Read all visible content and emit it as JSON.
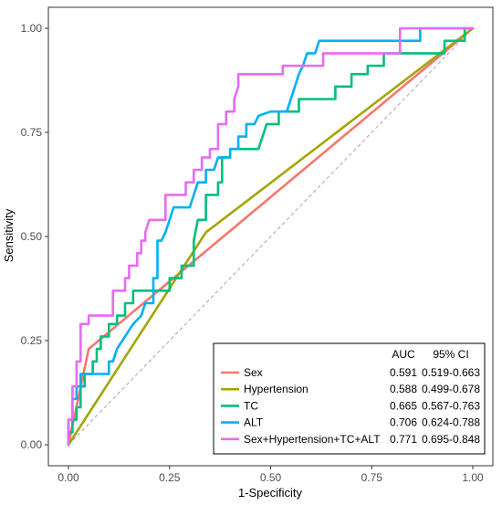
{
  "chart_data": {
    "type": "line",
    "xlabel": "1-Specificity",
    "ylabel": "Sensitivity",
    "xlim": [
      0,
      1
    ],
    "ylim": [
      0,
      1
    ],
    "x_ticks": [
      "0.00",
      "0.25",
      "0.50",
      "0.75",
      "1.00"
    ],
    "y_ticks": [
      "0.00",
      "0.25",
      "0.50",
      "0.75",
      "1.00"
    ],
    "grid": false,
    "legend": {
      "placement": "bottom-right",
      "header_auc": "AUC",
      "header_ci": "95% CI"
    },
    "reference_line": {
      "color": "#b0a0b8",
      "style": "dashed"
    },
    "series": [
      {
        "name": "Sex",
        "auc": "0.591",
        "ci": "0.519-0.663",
        "color": "#F8766D",
        "points": [
          [
            0,
            0
          ],
          [
            0.05,
            0.23
          ],
          [
            1,
            1
          ]
        ]
      },
      {
        "name": "Hypertension",
        "auc": "0.588",
        "ci": "0.499-0.678",
        "color": "#A3A500",
        "points": [
          [
            0,
            0
          ],
          [
            0.34,
            0.51
          ],
          [
            1,
            1
          ]
        ]
      },
      {
        "name": "TC",
        "auc": "0.665",
        "ci": "0.567-0.763",
        "color": "#00BF7D",
        "points": [
          [
            0,
            0
          ],
          [
            0,
            0.03
          ],
          [
            0.01,
            0.03
          ],
          [
            0.01,
            0.06
          ],
          [
            0.02,
            0.06
          ],
          [
            0.02,
            0.09
          ],
          [
            0.03,
            0.09
          ],
          [
            0.03,
            0.14
          ],
          [
            0.04,
            0.14
          ],
          [
            0.04,
            0.17
          ],
          [
            0.06,
            0.17
          ],
          [
            0.06,
            0.2
          ],
          [
            0.07,
            0.2
          ],
          [
            0.07,
            0.23
          ],
          [
            0.08,
            0.23
          ],
          [
            0.08,
            0.26
          ],
          [
            0.1,
            0.26
          ],
          [
            0.1,
            0.29
          ],
          [
            0.12,
            0.29
          ],
          [
            0.12,
            0.31
          ],
          [
            0.14,
            0.31
          ],
          [
            0.14,
            0.34
          ],
          [
            0.16,
            0.34
          ],
          [
            0.16,
            0.37
          ],
          [
            0.2,
            0.37
          ],
          [
            0.25,
            0.37
          ],
          [
            0.25,
            0.4
          ],
          [
            0.28,
            0.4
          ],
          [
            0.28,
            0.43
          ],
          [
            0.31,
            0.43
          ],
          [
            0.31,
            0.49
          ],
          [
            0.32,
            0.54
          ],
          [
            0.34,
            0.54
          ],
          [
            0.34,
            0.6
          ],
          [
            0.37,
            0.6
          ],
          [
            0.37,
            0.63
          ],
          [
            0.38,
            0.63
          ],
          [
            0.38,
            0.69
          ],
          [
            0.4,
            0.69
          ],
          [
            0.4,
            0.71
          ],
          [
            0.47,
            0.71
          ],
          [
            0.49,
            0.77
          ],
          [
            0.52,
            0.77
          ],
          [
            0.52,
            0.8
          ],
          [
            0.57,
            0.8
          ],
          [
            0.57,
            0.83
          ],
          [
            0.66,
            0.83
          ],
          [
            0.66,
            0.86
          ],
          [
            0.7,
            0.86
          ],
          [
            0.7,
            0.89
          ],
          [
            0.74,
            0.89
          ],
          [
            0.74,
            0.91
          ],
          [
            0.78,
            0.91
          ],
          [
            0.78,
            0.94
          ],
          [
            0.93,
            0.94
          ],
          [
            0.93,
            0.97
          ],
          [
            0.98,
            0.97
          ],
          [
            0.98,
            1
          ],
          [
            1,
            1
          ]
        ]
      },
      {
        "name": "ALT",
        "auc": "0.706",
        "ci": "0.624-0.788",
        "color": "#00B0F6",
        "points": [
          [
            0,
            0
          ],
          [
            0,
            0.06
          ],
          [
            0.01,
            0.06
          ],
          [
            0.01,
            0.11
          ],
          [
            0.02,
            0.11
          ],
          [
            0.02,
            0.14
          ],
          [
            0.03,
            0.14
          ],
          [
            0.03,
            0.17
          ],
          [
            0.1,
            0.17
          ],
          [
            0.1,
            0.2
          ],
          [
            0.11,
            0.2
          ],
          [
            0.12,
            0.23
          ],
          [
            0.14,
            0.26
          ],
          [
            0.16,
            0.29
          ],
          [
            0.18,
            0.31
          ],
          [
            0.19,
            0.34
          ],
          [
            0.21,
            0.34
          ],
          [
            0.21,
            0.4
          ],
          [
            0.22,
            0.4
          ],
          [
            0.22,
            0.49
          ],
          [
            0.23,
            0.49
          ],
          [
            0.24,
            0.51
          ],
          [
            0.25,
            0.54
          ],
          [
            0.26,
            0.57
          ],
          [
            0.3,
            0.57
          ],
          [
            0.31,
            0.6
          ],
          [
            0.32,
            0.63
          ],
          [
            0.34,
            0.63
          ],
          [
            0.34,
            0.66
          ],
          [
            0.36,
            0.66
          ],
          [
            0.37,
            0.69
          ],
          [
            0.4,
            0.69
          ],
          [
            0.4,
            0.71
          ],
          [
            0.42,
            0.71
          ],
          [
            0.42,
            0.74
          ],
          [
            0.44,
            0.74
          ],
          [
            0.44,
            0.77
          ],
          [
            0.46,
            0.77
          ],
          [
            0.47,
            0.79
          ],
          [
            0.5,
            0.8
          ],
          [
            0.54,
            0.8
          ],
          [
            0.56,
            0.86
          ],
          [
            0.57,
            0.89
          ],
          [
            0.58,
            0.91
          ],
          [
            0.59,
            0.94
          ],
          [
            0.61,
            0.94
          ],
          [
            0.62,
            0.97
          ],
          [
            0.73,
            0.97
          ],
          [
            0.73,
            0.97
          ],
          [
            0.87,
            0.97
          ],
          [
            0.87,
            1
          ],
          [
            1,
            1
          ]
        ]
      },
      {
        "name": "Sex+Hypertension+TC+ALT",
        "auc": "0.771",
        "ci": "0.695-0.848",
        "color": "#E76BF3",
        "points": [
          [
            0,
            0
          ],
          [
            0,
            0.06
          ],
          [
            0.01,
            0.06
          ],
          [
            0.01,
            0.14
          ],
          [
            0.02,
            0.14
          ],
          [
            0.02,
            0.2
          ],
          [
            0.03,
            0.2
          ],
          [
            0.03,
            0.26
          ],
          [
            0.03,
            0.29
          ],
          [
            0.05,
            0.29
          ],
          [
            0.05,
            0.31
          ],
          [
            0.11,
            0.31
          ],
          [
            0.11,
            0.37
          ],
          [
            0.14,
            0.37
          ],
          [
            0.14,
            0.4
          ],
          [
            0.15,
            0.4
          ],
          [
            0.15,
            0.43
          ],
          [
            0.17,
            0.43
          ],
          [
            0.17,
            0.46
          ],
          [
            0.18,
            0.46
          ],
          [
            0.18,
            0.49
          ],
          [
            0.19,
            0.49
          ],
          [
            0.19,
            0.51
          ],
          [
            0.2,
            0.54
          ],
          [
            0.24,
            0.54
          ],
          [
            0.24,
            0.6
          ],
          [
            0.29,
            0.6
          ],
          [
            0.29,
            0.63
          ],
          [
            0.31,
            0.63
          ],
          [
            0.31,
            0.66
          ],
          [
            0.33,
            0.66
          ],
          [
            0.33,
            0.69
          ],
          [
            0.35,
            0.69
          ],
          [
            0.35,
            0.71
          ],
          [
            0.37,
            0.71
          ],
          [
            0.37,
            0.77
          ],
          [
            0.39,
            0.77
          ],
          [
            0.39,
            0.8
          ],
          [
            0.41,
            0.8
          ],
          [
            0.41,
            0.83
          ],
          [
            0.42,
            0.86
          ],
          [
            0.42,
            0.89
          ],
          [
            0.53,
            0.89
          ],
          [
            0.53,
            0.91
          ],
          [
            0.63,
            0.91
          ],
          [
            0.63,
            0.94
          ],
          [
            0.82,
            0.94
          ],
          [
            0.82,
            0.97
          ],
          [
            0.82,
            1
          ],
          [
            1,
            1
          ]
        ]
      }
    ]
  }
}
